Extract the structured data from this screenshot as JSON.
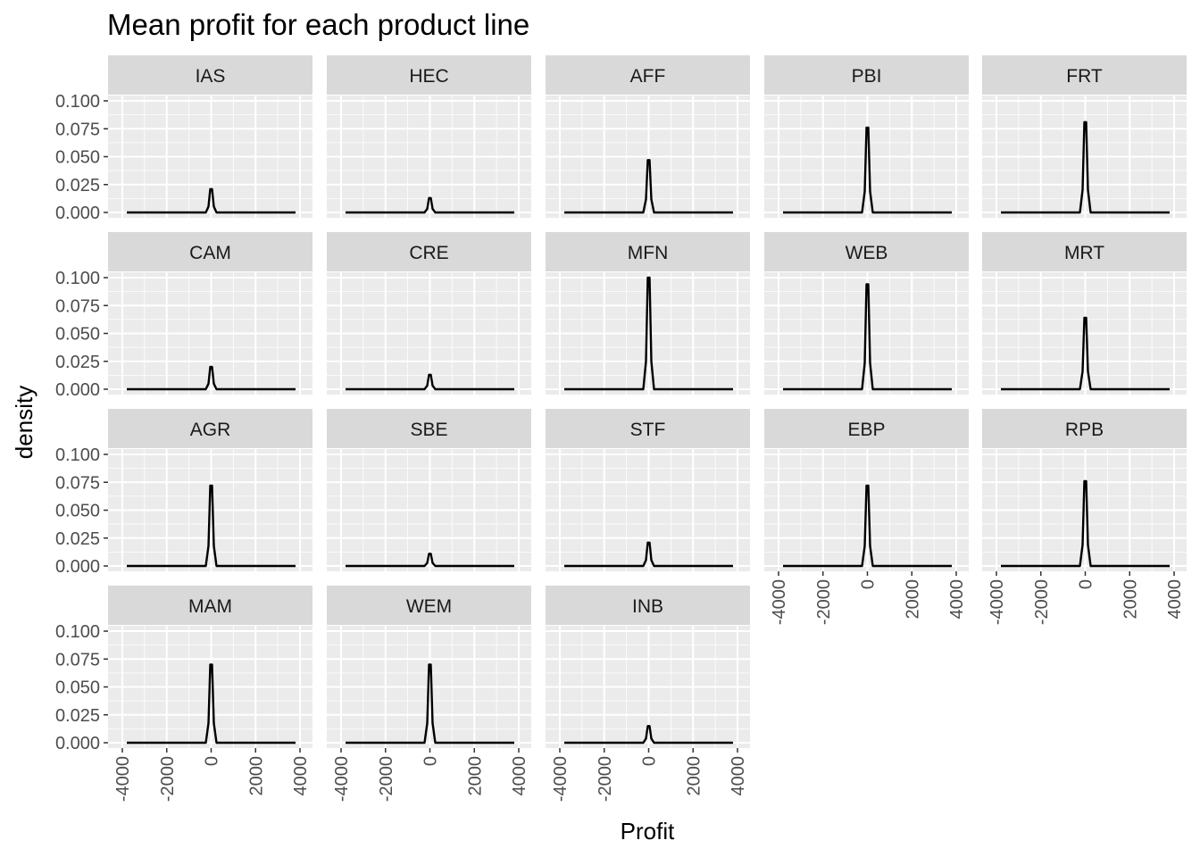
{
  "chart_data": {
    "type": "line",
    "title": "Mean profit for each product line",
    "xlabel": "Profit",
    "ylabel": "density",
    "xlim": [
      -4000,
      4000
    ],
    "ylim": [
      0,
      0.1
    ],
    "x_ticks": [
      "-4000",
      "-2000",
      "0",
      "2000",
      "4000"
    ],
    "y_ticks": [
      "0.000",
      "0.025",
      "0.050",
      "0.075",
      "0.100"
    ],
    "x_tick_values": [
      -4000,
      -2000,
      0,
      2000,
      4000
    ],
    "y_tick_values": [
      0,
      0.025,
      0.05,
      0.075,
      0.1
    ],
    "grid": true,
    "facet_columns": 5,
    "colors": {
      "panel_bg": "#ebebeb",
      "strip_bg": "#d9d9d9",
      "grid_major": "#ffffff",
      "line": "#000000"
    },
    "series": [
      {
        "name": "IAS",
        "peak_x": 0,
        "peak_density": 0.021
      },
      {
        "name": "HEC",
        "peak_x": 0,
        "peak_density": 0.013
      },
      {
        "name": "AFF",
        "peak_x": 0,
        "peak_density": 0.047
      },
      {
        "name": "PBI",
        "peak_x": 0,
        "peak_density": 0.076
      },
      {
        "name": "FRT",
        "peak_x": 0,
        "peak_density": 0.081
      },
      {
        "name": "CAM",
        "peak_x": 0,
        "peak_density": 0.02
      },
      {
        "name": "CRE",
        "peak_x": 0,
        "peak_density": 0.013
      },
      {
        "name": "MFN",
        "peak_x": 0,
        "peak_density": 0.1
      },
      {
        "name": "WEB",
        "peak_x": 0,
        "peak_density": 0.094
      },
      {
        "name": "MRT",
        "peak_x": 0,
        "peak_density": 0.064
      },
      {
        "name": "AGR",
        "peak_x": 0,
        "peak_density": 0.072
      },
      {
        "name": "SBE",
        "peak_x": 0,
        "peak_density": 0.011
      },
      {
        "name": "STF",
        "peak_x": 0,
        "peak_density": 0.021
      },
      {
        "name": "EBP",
        "peak_x": 0,
        "peak_density": 0.072
      },
      {
        "name": "RPB",
        "peak_x": 0,
        "peak_density": 0.076
      },
      {
        "name": "MAM",
        "peak_x": 0,
        "peak_density": 0.07
      },
      {
        "name": "WEM",
        "peak_x": 0,
        "peak_density": 0.07
      },
      {
        "name": "INB",
        "peak_x": 0,
        "peak_density": 0.015
      }
    ]
  }
}
